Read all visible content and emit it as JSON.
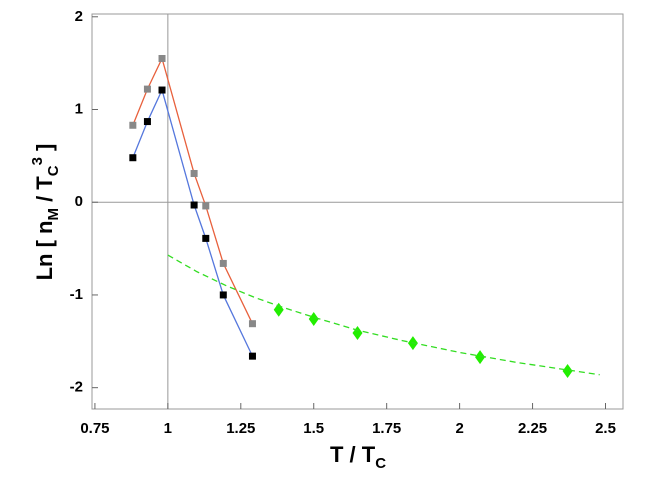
{
  "chart_data": {
    "type": "line",
    "x_label": [
      "T / T",
      "C"
    ],
    "y_label": [
      "Ln [ n",
      "M",
      " / T",
      "C",
      "3",
      " ]"
    ],
    "xlim": [
      0.74,
      2.56
    ],
    "ylim": [
      -2.23,
      2.03
    ],
    "xticks": [
      0.75,
      1,
      1.25,
      1.5,
      1.75,
      2,
      2.25,
      2.5
    ],
    "yticks": [
      -2,
      -1,
      0,
      1,
      2
    ],
    "series": [
      {
        "color": "#e8603c",
        "marker": "square",
        "marker_color": "#888888",
        "x": [
          0.88,
          0.93,
          0.98,
          1.09,
          1.13,
          1.19,
          1.29
        ],
        "values": [
          0.83,
          1.22,
          1.55,
          0.31,
          -0.04,
          -0.66,
          -1.31
        ]
      },
      {
        "color": "#5577dd",
        "marker": "square",
        "marker_color": "#000000",
        "x": [
          0.88,
          0.93,
          0.98,
          1.09,
          1.13,
          1.19,
          1.29
        ],
        "values": [
          0.48,
          0.87,
          1.21,
          -0.03,
          -0.39,
          -1.0,
          -1.66
        ]
      },
      {
        "marker": "diamond",
        "marker_color": "#22ee00",
        "x": [
          1.38,
          1.5,
          1.65,
          1.84,
          2.07,
          2.37
        ],
        "values": [
          -1.16,
          -1.26,
          -1.41,
          -1.52,
          -1.67,
          -1.82
        ]
      },
      {
        "color": "#33dd22",
        "dash": true,
        "x": [
          1.0,
          1.1,
          1.2,
          1.3,
          1.4,
          1.5,
          1.65,
          1.8,
          2.0,
          2.2,
          2.48
        ],
        "values": [
          -0.57,
          -0.75,
          -0.9,
          -1.03,
          -1.14,
          -1.24,
          -1.38,
          -1.49,
          -1.62,
          -1.73,
          -1.86
        ]
      }
    ]
  }
}
